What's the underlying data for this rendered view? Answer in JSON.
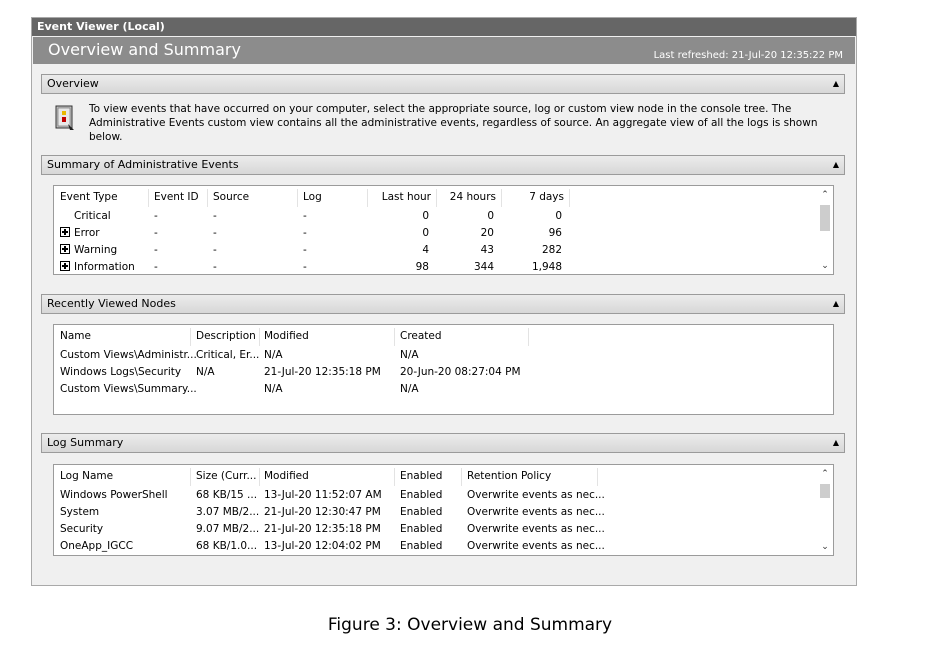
{
  "window": {
    "title": "Event Viewer (Local)",
    "header_title": "Overview and Summary",
    "last_refreshed": "Last refreshed: 21-Jul-20 12:35:22 PM"
  },
  "overview": {
    "label": "Overview",
    "text": "To view events that have occurred on your computer, select the appropriate source, log or custom view node in the console tree. The Administrative Events custom view contains all the administrative events, regardless of source. An aggregate view of all the logs is shown below."
  },
  "admin_events": {
    "label": "Summary of Administrative Events",
    "headers": [
      "Event Type",
      "Event ID",
      "Source",
      "Log",
      "Last hour",
      "24 hours",
      "7 days"
    ],
    "rows": [
      {
        "type": "Critical",
        "expandable": false,
        "event_id": "-",
        "source": "-",
        "log": "-",
        "last_hour": "0",
        "h24": "0",
        "d7": "0"
      },
      {
        "type": "Error",
        "expandable": true,
        "event_id": "-",
        "source": "-",
        "log": "-",
        "last_hour": "0",
        "h24": "20",
        "d7": "96"
      },
      {
        "type": "Warning",
        "expandable": true,
        "event_id": "-",
        "source": "-",
        "log": "-",
        "last_hour": "4",
        "h24": "43",
        "d7": "282"
      },
      {
        "type": "Information",
        "expandable": true,
        "event_id": "-",
        "source": "-",
        "log": "-",
        "last_hour": "98",
        "h24": "344",
        "d7": "1,948"
      }
    ]
  },
  "recent_nodes": {
    "label": "Recently Viewed Nodes",
    "headers": [
      "Name",
      "Description",
      "Modified",
      "Created"
    ],
    "rows": [
      {
        "name": "Custom Views\\Administr...",
        "description": "Critical, Er...",
        "modified": "N/A",
        "created": "N/A"
      },
      {
        "name": "Windows Logs\\Security",
        "description": "N/A",
        "modified": "21-Jul-20 12:35:18 PM",
        "created": "20-Jun-20 08:27:04 PM"
      },
      {
        "name": "Custom Views\\Summary...",
        "description": "",
        "modified": "N/A",
        "created": "N/A"
      }
    ]
  },
  "log_summary": {
    "label": "Log Summary",
    "headers": [
      "Log Name",
      "Size (Curr...",
      "Modified",
      "Enabled",
      "Retention Policy"
    ],
    "rows": [
      {
        "name": "Windows PowerShell",
        "size": "68 KB/15 ...",
        "modified": "13-Jul-20 11:52:07 AM",
        "enabled": "Enabled",
        "retention": "Overwrite events as nec..."
      },
      {
        "name": "System",
        "size": "3.07 MB/2...",
        "modified": "21-Jul-20 12:30:47 PM",
        "enabled": "Enabled",
        "retention": "Overwrite events as nec..."
      },
      {
        "name": "Security",
        "size": "9.07 MB/2...",
        "modified": "21-Jul-20 12:35:18 PM",
        "enabled": "Enabled",
        "retention": "Overwrite events as nec..."
      },
      {
        "name": "OneApp_IGCC",
        "size": "68 KB/1.0...",
        "modified": "13-Jul-20 12:04:02 PM",
        "enabled": "Enabled",
        "retention": "Overwrite events as nec..."
      }
    ]
  },
  "icons": {
    "collapse": "collapse-arrow-icon",
    "overview": "event-log-book-icon",
    "expand": "plus-box-icon",
    "scroll_up": "chevron-up-icon",
    "scroll_down": "chevron-down-icon"
  },
  "caption": "Figure 3: Overview and Summary"
}
